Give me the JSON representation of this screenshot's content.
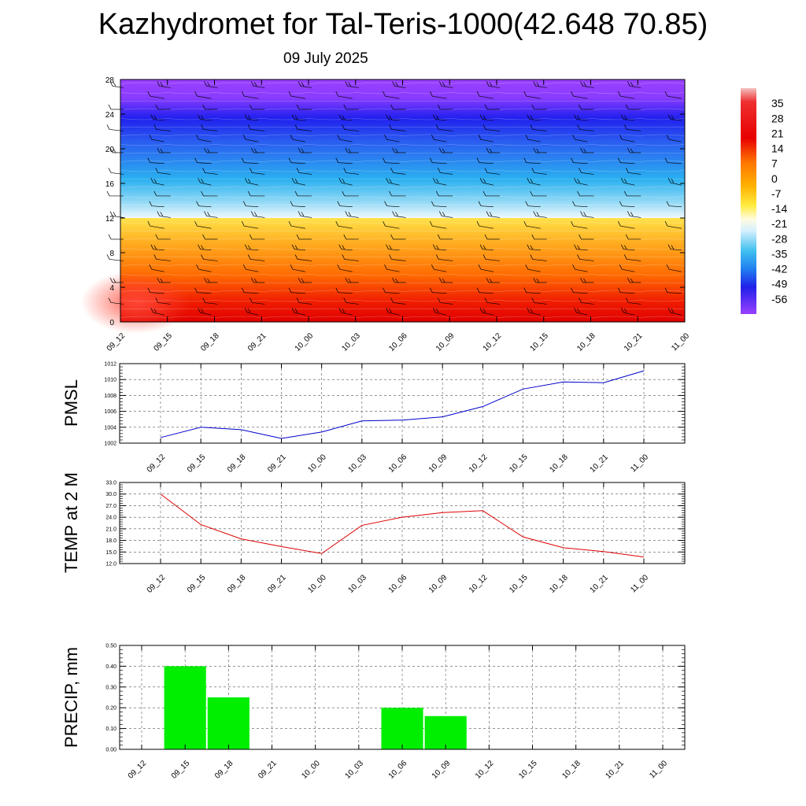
{
  "title": "Kazhydromet for Tal-Teris-1000(42.648 70.85)",
  "subtitle": "09 July 2025",
  "chart_data": [
    {
      "type": "heatmap",
      "name": "temperature-wind cross section",
      "x_ticks": [
        "09_12",
        "09_15",
        "09_18",
        "09_21",
        "10_00",
        "10_03",
        "10_06",
        "10_09",
        "10_12",
        "10_15",
        "10_18",
        "10_21",
        "11_00"
      ],
      "y_ticks": [
        "0",
        "4",
        "8",
        "12",
        "16",
        "20",
        "24",
        "28"
      ],
      "ylim": [
        0,
        28
      ],
      "colorbar": {
        "labels": [
          "35",
          "28",
          "21",
          "14",
          "7",
          "0",
          "-7",
          "-14",
          "-21",
          "-28",
          "-35",
          "-42",
          "-49",
          "-56"
        ],
        "range": [
          -63,
          42
        ]
      },
      "bands": [
        {
          "from": 0,
          "to": 12,
          "top_value": 0,
          "bottom_value": 30
        },
        {
          "from": 12,
          "to": 28,
          "top_value": -56,
          "bottom_value": -14
        }
      ],
      "colors": {
        "hot": "#e60000",
        "orange": "#ff9900",
        "yellow": "#ffe030",
        "pale": "#e8f4ff",
        "cyan": "#33bbee",
        "blue": "#1a1aee",
        "purple": "#8833ff"
      }
    },
    {
      "type": "line",
      "ylabel": "PMSL",
      "x": [
        "09_12",
        "09_15",
        "09_18",
        "09_21",
        "10_00",
        "10_03",
        "10_06",
        "10_09",
        "10_12",
        "10_15",
        "10_18",
        "10_21",
        "11_00"
      ],
      "values": [
        1002.7,
        1004.0,
        1003.7,
        1002.6,
        1003.4,
        1004.8,
        1004.9,
        1005.3,
        1006.6,
        1008.8,
        1009.7,
        1009.6,
        1011.1
      ],
      "ylim": [
        1002,
        1012
      ],
      "y_ticks": [
        "1002",
        "1004",
        "1006",
        "1008",
        "1010",
        "1012"
      ],
      "color": "#0000cc",
      "grid": true
    },
    {
      "type": "line",
      "ylabel": "TEMP at 2 M",
      "x": [
        "09_12",
        "09_15",
        "09_18",
        "09_21",
        "10_00",
        "10_03",
        "10_06",
        "10_09",
        "10_12",
        "10_15",
        "10_18",
        "10_21",
        "11_00"
      ],
      "values": [
        30.0,
        22.1,
        18.4,
        16.4,
        14.6,
        21.9,
        24.0,
        25.2,
        25.7,
        18.9,
        16.1,
        15.1,
        13.7
      ],
      "ylim": [
        12,
        33
      ],
      "y_ticks": [
        "12.0",
        "15.0",
        "18.0",
        "21.0",
        "24.0",
        "27.0",
        "30.0",
        "33.0"
      ],
      "color": "#dd0000",
      "grid": true
    },
    {
      "type": "bar",
      "ylabel": "PRECIP, mm",
      "x": [
        "09_12",
        "09_15",
        "09_18",
        "09_21",
        "10_00",
        "10_03",
        "10_06",
        "10_09",
        "10_12",
        "10_15",
        "10_18",
        "10_21",
        "11_00"
      ],
      "values": [
        0,
        0.4,
        0.25,
        0,
        0,
        0,
        0.2,
        0.16,
        0,
        0,
        0,
        0,
        0
      ],
      "ylim": [
        0,
        0.5
      ],
      "y_ticks": [
        "0.00",
        "0.10",
        "0.20",
        "0.30",
        "0.40",
        "0.50"
      ],
      "color": "#00ee00",
      "grid": true
    }
  ]
}
